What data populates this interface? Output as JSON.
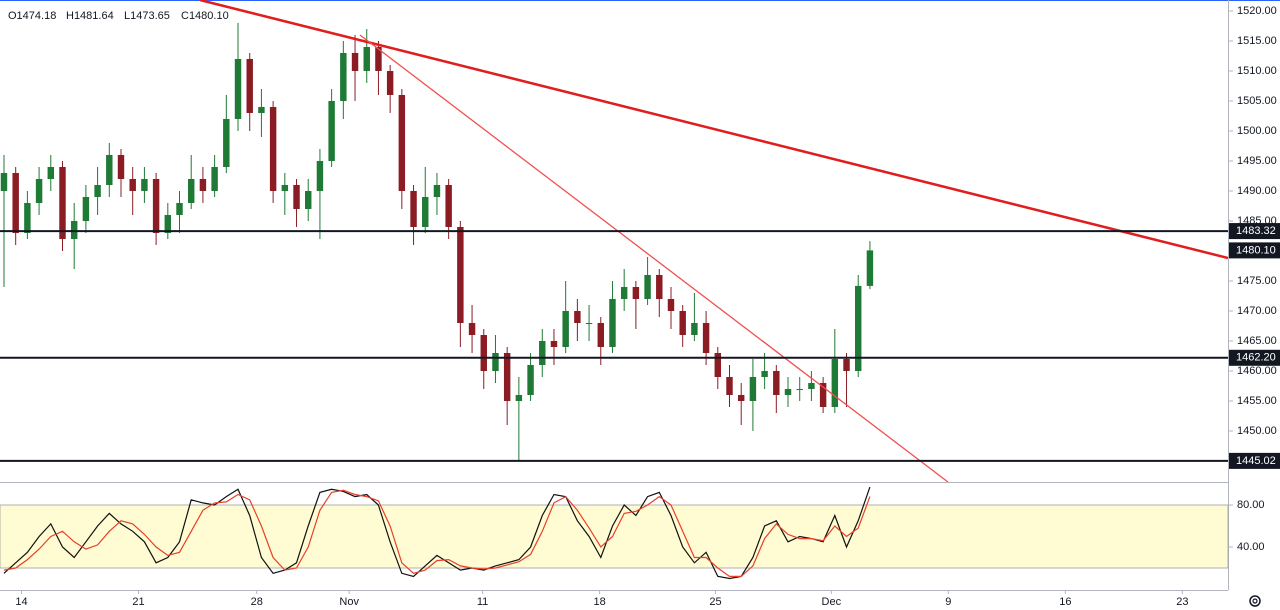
{
  "chart_data": [
    {
      "type": "candlestick",
      "ohlc_legend": [
        "O1474.18",
        "H1481.64",
        "L1473.65",
        "C1480.10"
      ],
      "up_color": "#1f7a35",
      "down_color": "#8b1c24",
      "ohlc": [
        [
          1490,
          1496,
          1474,
          1493
        ],
        [
          1493,
          1494,
          1481,
          1483
        ],
        [
          1483,
          1490,
          1482,
          1488
        ],
        [
          1488,
          1494,
          1486,
          1492
        ],
        [
          1492,
          1496,
          1490,
          1494
        ],
        [
          1494,
          1495,
          1480,
          1482
        ],
        [
          1482,
          1488,
          1477,
          1485
        ],
        [
          1485,
          1491,
          1483,
          1489
        ],
        [
          1489,
          1494,
          1486,
          1491
        ],
        [
          1491,
          1498,
          1489,
          1496
        ],
        [
          1496,
          1497,
          1489,
          1492
        ],
        [
          1492,
          1494,
          1486,
          1490
        ],
        [
          1490,
          1494,
          1488,
          1492
        ],
        [
          1492,
          1493,
          1481,
          1483
        ],
        [
          1483,
          1488,
          1482,
          1486
        ],
        [
          1486,
          1490,
          1483,
          1488
        ],
        [
          1488,
          1496,
          1487,
          1492
        ],
        [
          1492,
          1494,
          1488,
          1490
        ],
        [
          1490,
          1496,
          1489,
          1494
        ],
        [
          1494,
          1506,
          1493,
          1502
        ],
        [
          1502,
          1518,
          1500,
          1512
        ],
        [
          1512,
          1513,
          1500,
          1503
        ],
        [
          1503,
          1507,
          1499,
          1504
        ],
        [
          1504,
          1505,
          1488,
          1490
        ],
        [
          1490,
          1493,
          1486,
          1491
        ],
        [
          1491,
          1492,
          1484,
          1487
        ],
        [
          1487,
          1492,
          1485,
          1490
        ],
        [
          1490,
          1497,
          1482,
          1495
        ],
        [
          1495,
          1507,
          1494,
          1505
        ],
        [
          1505,
          1515,
          1502,
          1513
        ],
        [
          1513,
          1516,
          1505,
          1510
        ],
        [
          1510,
          1517,
          1508,
          1514
        ],
        [
          1514,
          1515,
          1506,
          1510
        ],
        [
          1510,
          1511,
          1503,
          1506
        ],
        [
          1506,
          1507,
          1487,
          1490
        ],
        [
          1490,
          1491,
          1481,
          1484
        ],
        [
          1484,
          1494,
          1483,
          1489
        ],
        [
          1489,
          1493,
          1486,
          1491
        ],
        [
          1491,
          1492,
          1482,
          1484
        ],
        [
          1484,
          1485,
          1464,
          1468
        ],
        [
          1468,
          1471,
          1463,
          1466
        ],
        [
          1466,
          1467,
          1457,
          1460
        ],
        [
          1460,
          1466,
          1458,
          1463
        ],
        [
          1463,
          1464,
          1451,
          1455
        ],
        [
          1455,
          1459,
          1445,
          1456
        ],
        [
          1456,
          1463,
          1455,
          1461
        ],
        [
          1461,
          1467,
          1459,
          1465
        ],
        [
          1465,
          1467,
          1461,
          1464
        ],
        [
          1464,
          1475,
          1463,
          1470
        ],
        [
          1470,
          1472,
          1465,
          1468
        ],
        [
          1468,
          1471,
          1465,
          1468
        ],
        [
          1468,
          1469,
          1461,
          1464
        ],
        [
          1464,
          1475,
          1463,
          1472
        ],
        [
          1472,
          1477,
          1470,
          1474
        ],
        [
          1474,
          1475,
          1467,
          1472
        ],
        [
          1472,
          1479,
          1471,
          1476
        ],
        [
          1476,
          1477,
          1469,
          1472
        ],
        [
          1472,
          1474,
          1467,
          1470
        ],
        [
          1470,
          1471,
          1464,
          1466
        ],
        [
          1466,
          1473,
          1465,
          1468
        ],
        [
          1468,
          1470,
          1461,
          1463
        ],
        [
          1463,
          1464,
          1457,
          1459
        ],
        [
          1459,
          1461,
          1454,
          1456
        ],
        [
          1456,
          1458,
          1451,
          1455
        ],
        [
          1455,
          1462,
          1450,
          1459
        ],
        [
          1459,
          1463,
          1457,
          1460
        ],
        [
          1460,
          1461,
          1453,
          1456
        ],
        [
          1456,
          1459,
          1454,
          1457
        ],
        [
          1457,
          1459,
          1455,
          1457
        ],
        [
          1457,
          1460,
          1455,
          1458
        ],
        [
          1458,
          1459,
          1453,
          1454
        ],
        [
          1454,
          1467,
          1453,
          1462
        ],
        [
          1462,
          1463,
          1454,
          1460
        ],
        [
          1460,
          1476,
          1459,
          1474.18
        ],
        [
          1474.18,
          1481.64,
          1473.65,
          1480.1
        ]
      ],
      "xlim": [
        -0.34,
        104.6
      ],
      "xticks": [
        {
          "value": 1.5,
          "label": "14"
        },
        {
          "value": 11.5,
          "label": "21"
        },
        {
          "value": 21.6,
          "label": "28"
        },
        {
          "value": 29.5,
          "label": "Nov"
        },
        {
          "value": 40.9,
          "label": "11"
        },
        {
          "value": 50.9,
          "label": "18"
        },
        {
          "value": 60.8,
          "label": "25"
        },
        {
          "value": 70.7,
          "label": "Dec"
        },
        {
          "value": 80.7,
          "label": "9"
        },
        {
          "value": 90.7,
          "label": "16"
        },
        {
          "value": 100.7,
          "label": "23"
        }
      ],
      "ylim": [
        1441.5,
        1521.83
      ],
      "yticks": [
        {
          "value": 1450,
          "label": "1450.00"
        },
        {
          "value": 1455,
          "label": "1455.00"
        },
        {
          "value": 1460,
          "label": "1460.00"
        },
        {
          "value": 1465,
          "label": "1465.00"
        },
        {
          "value": 1470,
          "label": "1470.00"
        },
        {
          "value": 1475,
          "label": "1475.00"
        },
        {
          "value": 1480,
          "label": "1480.00"
        },
        {
          "value": 1485,
          "label": "1485.00"
        },
        {
          "value": 1490,
          "label": "1490.00"
        },
        {
          "value": 1495,
          "label": "1495.00"
        },
        {
          "value": 1500,
          "label": "1500.00"
        },
        {
          "value": 1505,
          "label": "1505.00"
        },
        {
          "value": 1510,
          "label": "1510.00"
        },
        {
          "value": 1515,
          "label": "1515.00"
        },
        {
          "value": 1520,
          "label": "1520.00"
        }
      ],
      "hlines": [
        1483.32,
        {
          "value": 1462.2,
          "label": "1462.20"
        },
        1445.02
      ],
      "last_price": {
        "value": 1480.1,
        "label": "1480.10"
      },
      "trendlines": [
        {
          "start": [
            16.75,
            1521.83
          ],
          "end": [
            104.6,
            1478.83
          ],
          "color": "#e01e1e",
          "width": 2.5
        },
        {
          "start": [
            30.42,
            1516
          ],
          "end": [
            80.67,
            1441.5
          ],
          "color": "#f05050",
          "width": 1.3
        }
      ]
    },
    {
      "type": "line",
      "ylim": [
        0,
        100
      ],
      "yticks": [
        {
          "value": 80,
          "label": "80.00"
        },
        {
          "value": 40,
          "label": "40.00"
        }
      ],
      "band": [
        20,
        80
      ],
      "band_color": "#fffbd2",
      "series": [
        {
          "color": "#111111",
          "values": [
            15,
            25,
            35,
            50,
            62,
            40,
            30,
            45,
            60,
            72,
            62,
            55,
            45,
            25,
            30,
            45,
            85,
            82,
            80,
            88,
            95,
            70,
            30,
            15,
            18,
            25,
            60,
            92,
            95,
            93,
            88,
            90,
            80,
            45,
            15,
            12,
            22,
            32,
            25,
            18,
            20,
            18,
            22,
            25,
            28,
            40,
            70,
            90,
            88,
            65,
            50,
            30,
            60,
            80,
            70,
            88,
            92,
            70,
            40,
            25,
            35,
            12,
            10,
            12,
            30,
            60,
            65,
            45,
            50,
            48,
            45,
            70,
            40,
            65,
            97
          ]
        },
        {
          "color": "#e8402a",
          "values": [
            18,
            20,
            28,
            38,
            50,
            55,
            45,
            38,
            42,
            55,
            65,
            62,
            52,
            40,
            32,
            35,
            55,
            75,
            82,
            83,
            90,
            85,
            60,
            30,
            18,
            20,
            40,
            75,
            92,
            94,
            90,
            88,
            84,
            60,
            25,
            15,
            18,
            27,
            28,
            22,
            20,
            19,
            20,
            23,
            26,
            33,
            55,
            82,
            88,
            75,
            58,
            40,
            50,
            72,
            74,
            80,
            88,
            80,
            55,
            30,
            30,
            20,
            12,
            12,
            22,
            48,
            62,
            52,
            48,
            48,
            46,
            60,
            50,
            58,
            88
          ]
        }
      ]
    }
  ]
}
